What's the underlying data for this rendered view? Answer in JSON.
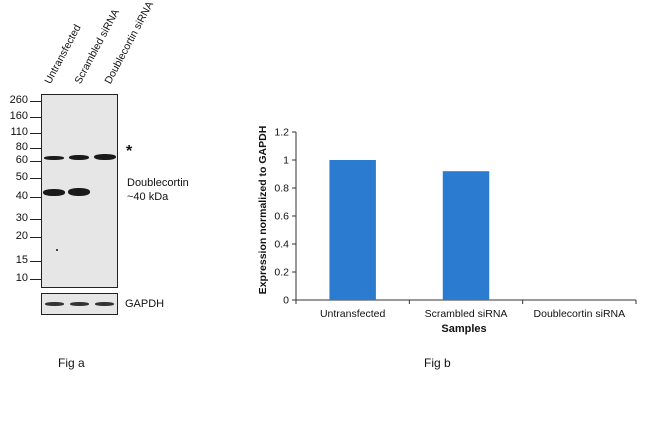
{
  "fig_a": {
    "lanes": [
      "Untransfected",
      "Scrambled siRNA",
      "Doublecortin siRNA"
    ],
    "mw_markers": [
      "260",
      "160",
      "110",
      "80",
      "60",
      "50",
      "40",
      "30",
      "20",
      "15",
      "10"
    ],
    "asterisk": "*",
    "band_label_line1": "Doublecortin",
    "band_label_line2": "~40 kDa",
    "loading_control": "GAPDH",
    "caption": "Fig a"
  },
  "fig_b": {
    "caption": "Fig b"
  },
  "chart_data": {
    "type": "bar",
    "title": "",
    "categories": [
      "Untransfected",
      "Scrambled siRNA",
      "Doublecortin siRNA"
    ],
    "values": [
      1.0,
      0.92,
      0.0
    ],
    "xlabel": "Samples",
    "ylabel": "Expression  normalized to GAPDH",
    "ylim": [
      0,
      1.2
    ],
    "yticks": [
      0,
      0.2,
      0.4,
      0.6,
      0.8,
      1,
      1.2
    ],
    "bar_color": "#2B7BD1",
    "grid": false,
    "legend": "none"
  }
}
